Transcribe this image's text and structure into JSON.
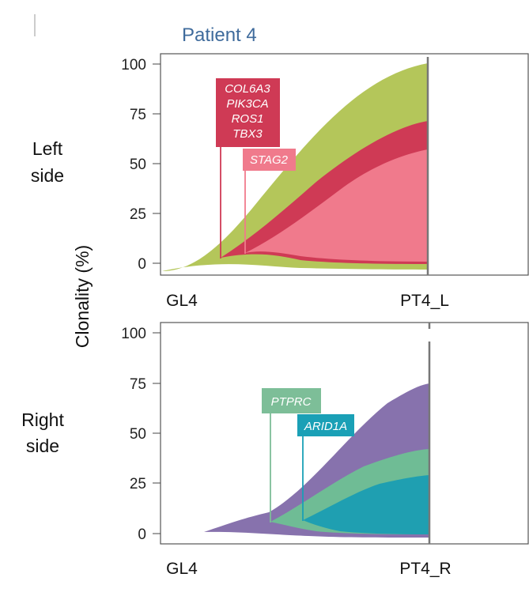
{
  "title": "Patient 4",
  "ylabel": "Clonality (%)",
  "colors": {
    "green": "#b4c65a",
    "crimson": "#cf3a55",
    "pink": "#f07a8c",
    "purple": "#8772ad",
    "teal_light": "#6fbc95",
    "teal": "#1f9fb1",
    "title": "#3f6b9c",
    "label_green": "#7dbe98",
    "label_teal": "#1aa0b6"
  },
  "panels": [
    {
      "side_label": [
        "Left",
        "side"
      ],
      "categories": [
        "GL4",
        "PT4_L"
      ],
      "y_ticks": [
        "100",
        "75",
        "50",
        "25",
        "0"
      ]
    },
    {
      "side_label": [
        "Right",
        "side"
      ],
      "categories": [
        "GL4",
        "PT4_R"
      ],
      "y_ticks": [
        "100",
        "75",
        "50",
        "25",
        "0"
      ]
    }
  ],
  "chart_data": [
    {
      "type": "area",
      "subtitle": "Left side",
      "categories": [
        "GL4",
        "PT4_L"
      ],
      "ylabel": "Clonality (%)",
      "ylim": [
        0,
        100
      ],
      "series": [
        {
          "color": "#b4c65a",
          "values": [
            0,
            100
          ]
        },
        {
          "color": "#cf3a55",
          "values": [
            0,
            72
          ]
        },
        {
          "color": "#f07a8c",
          "values": [
            0,
            57
          ]
        }
      ],
      "annotations": [
        {
          "text": [
            "COL6A3",
            "PIK3CA",
            "ROS1",
            "TBX3"
          ],
          "color": "#cf3a55"
        },
        {
          "text": [
            "STAG2"
          ],
          "color": "#f07a8c"
        }
      ],
      "grid": false
    },
    {
      "type": "area",
      "subtitle": "Right side",
      "categories": [
        "GL4",
        "PT4_R"
      ],
      "ylabel": "Clonality (%)",
      "ylim": [
        0,
        100
      ],
      "series": [
        {
          "color": "#8772ad",
          "values": [
            0,
            75
          ]
        },
        {
          "color": "#6fbc95",
          "values": [
            0,
            42
          ]
        },
        {
          "color": "#1f9fb1",
          "values": [
            0,
            29
          ]
        }
      ],
      "annotations": [
        {
          "text": [
            "PTPRC"
          ],
          "color": "#7dbe98"
        },
        {
          "text": [
            "ARID1A"
          ],
          "color": "#1aa0b6"
        }
      ],
      "grid": false
    }
  ]
}
